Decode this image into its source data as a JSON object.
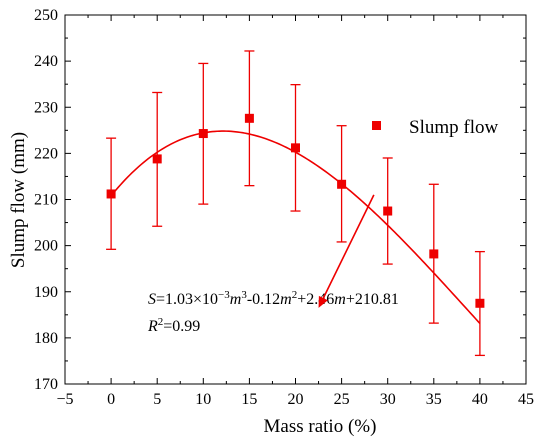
{
  "chart_data": {
    "type": "scatter",
    "xlabel": "Mass ratio (%)",
    "ylabel": "Slump flow (mm)",
    "xlim": [
      -5,
      45
    ],
    "ylim": [
      170,
      250
    ],
    "xticks": [
      -5,
      0,
      5,
      10,
      15,
      20,
      25,
      30,
      35,
      40,
      45
    ],
    "yticks": [
      170,
      180,
      190,
      200,
      210,
      220,
      230,
      240,
      250
    ],
    "grid": false,
    "legend_position": "right",
    "series": [
      {
        "name": "Slump flow",
        "color": "#ee0000",
        "marker": "square",
        "x": [
          0,
          5,
          10,
          15,
          20,
          25,
          30,
          35,
          40
        ],
        "y": [
          211.2,
          218.8,
          224.3,
          227.6,
          221.2,
          213.3,
          207.5,
          198.2,
          187.5
        ],
        "err_high": [
          223.3,
          233.2,
          239.5,
          242.2,
          234.9,
          226.0,
          219.0,
          213.3,
          198.7
        ],
        "err_low": [
          199.2,
          204.2,
          209.0,
          213.0,
          207.5,
          200.8,
          196.0,
          183.2,
          176.2
        ]
      }
    ],
    "fit": {
      "coefficients": [
        0.00103,
        -0.12,
        2.46,
        210.81
      ],
      "x_range": [
        0,
        40
      ],
      "color": "#ee0000"
    },
    "annotation": {
      "equation_parts": [
        "S",
        "=1.03×10",
        "−3",
        "m",
        "3",
        "-0.12",
        "m",
        "2",
        "+2.46",
        "m",
        "+210.81"
      ],
      "r2_parts": [
        "R",
        "2",
        "=0.99"
      ],
      "arrow_from": [
        28.5,
        211.0
      ],
      "arrow_to": [
        22.5,
        186.5
      ]
    }
  }
}
